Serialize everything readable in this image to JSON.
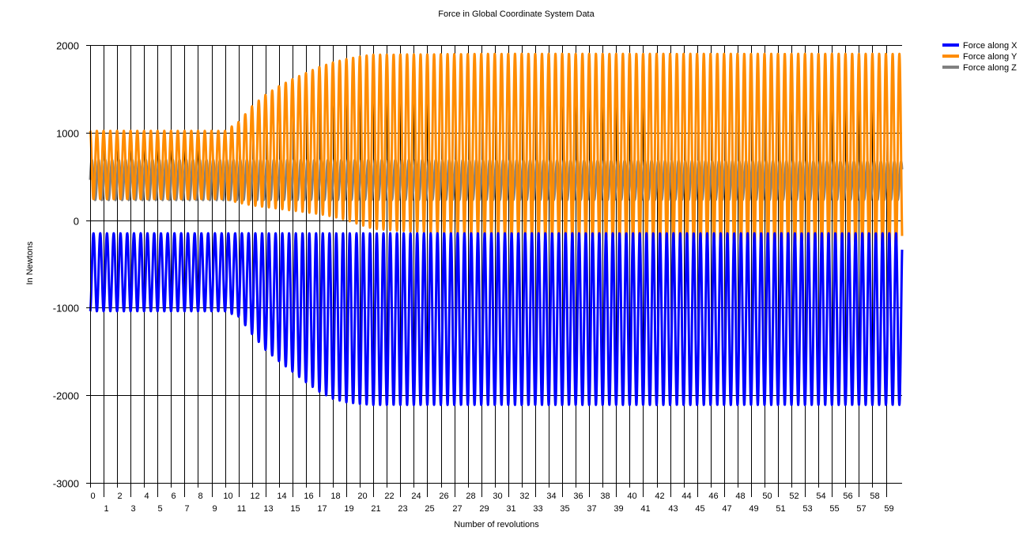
{
  "chart_data": {
    "type": "line",
    "title": "Force in Global Coordinate System Data",
    "xlabel": "Number of revolutions",
    "ylabel": "In Newtons",
    "xlim": [
      0,
      60.2
    ],
    "ylim": [
      -3000,
      2000
    ],
    "y_ticks": [
      2000,
      1000,
      0,
      -1000,
      -2000,
      -3000
    ],
    "y_tick_labels": [
      "2000",
      "1000",
      "0",
      "-1000",
      "-2000",
      "-3000"
    ],
    "x_ticks": [
      0,
      1,
      2,
      3,
      4,
      5,
      6,
      7,
      8,
      9,
      10,
      11,
      12,
      13,
      14,
      15,
      16,
      17,
      18,
      19,
      20,
      21,
      22,
      23,
      24,
      25,
      26,
      27,
      28,
      29,
      30,
      31,
      32,
      33,
      34,
      35,
      36,
      37,
      38,
      39,
      40,
      41,
      42,
      43,
      44,
      45,
      46,
      47,
      48,
      49,
      50,
      51,
      52,
      53,
      54,
      55,
      56,
      57,
      58,
      59
    ],
    "x_tick_labels": [
      "0",
      "1",
      "2",
      "3",
      "4",
      "5",
      "6",
      "7",
      "8",
      "9",
      "10",
      "11",
      "12",
      "13",
      "14",
      "15",
      "16",
      "17",
      "18",
      "19",
      "20",
      "21",
      "22",
      "23",
      "24",
      "25",
      "26",
      "27",
      "28",
      "29",
      "30",
      "31",
      "32",
      "33",
      "34",
      "35",
      "36",
      "37",
      "38",
      "39",
      "40",
      "41",
      "42",
      "43",
      "44",
      "45",
      "46",
      "47",
      "48",
      "49",
      "50",
      "51",
      "52",
      "53",
      "54",
      "55",
      "56",
      "57",
      "58",
      "59"
    ],
    "grid": true,
    "legend_position": "top-right",
    "cycles_per_revolution": 2,
    "series": [
      {
        "name": "Force along X",
        "color": "#0000ff",
        "envelope_x": [
          0,
          10,
          11,
          12,
          13,
          14,
          15,
          16,
          17,
          18,
          19,
          20,
          21,
          60.2
        ],
        "upper": [
          -150,
          -150,
          -150,
          -150,
          -150,
          -150,
          -150,
          -150,
          -150,
          -150,
          -150,
          -150,
          -150,
          -150
        ],
        "lower": [
          -1040,
          -1040,
          -1100,
          -1300,
          -1480,
          -1610,
          -1730,
          -1850,
          -1960,
          -2040,
          -2080,
          -2100,
          -2110,
          -2110
        ]
      },
      {
        "name": "Force along Y",
        "color": "#ff8c00",
        "envelope_x": [
          0,
          10,
          11,
          12,
          13,
          14,
          15,
          16,
          17,
          18,
          19,
          20,
          21,
          30,
          40,
          50,
          60.2
        ],
        "upper": [
          1020,
          1020,
          1120,
          1300,
          1430,
          1530,
          1610,
          1680,
          1750,
          1800,
          1840,
          1870,
          1890,
          1900,
          1900,
          1900,
          1900
        ],
        "lower": [
          240,
          240,
          200,
          170,
          150,
          130,
          110,
          90,
          70,
          40,
          0,
          -50,
          -100,
          -200,
          -300,
          -380,
          -400
        ]
      },
      {
        "name": "Force along Z",
        "color": "#808080",
        "envelope_x": [
          0,
          20,
          40,
          60.2
        ],
        "upper": [
          690,
          690,
          680,
          670
        ],
        "lower": [
          230,
          230,
          230,
          230
        ]
      }
    ]
  }
}
